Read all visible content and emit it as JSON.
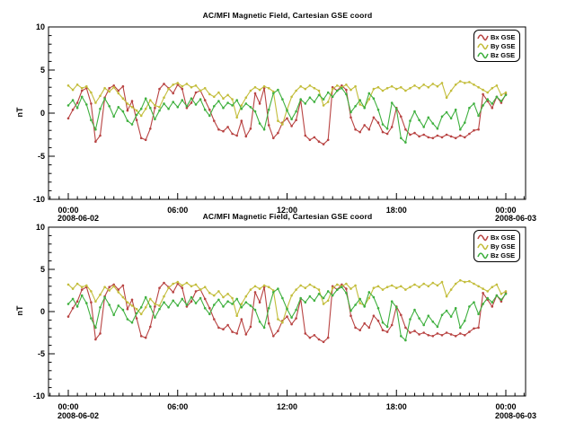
{
  "chart_data": {
    "type": "line",
    "title": "AC/MFI  Magnetic Field, Cartesian GSE coord",
    "ylabel": "nT",
    "ylim": [
      -10,
      10
    ],
    "y_ticks": [
      -10,
      -5,
      0,
      5,
      10
    ],
    "y_tick_labels": [
      "-10",
      "-5",
      "0",
      "5",
      "10"
    ],
    "y_minor_step": 1,
    "x_ticks_hours": [
      0,
      6,
      12,
      18,
      24
    ],
    "x_tick_labels": [
      "00:00",
      "06:00",
      "12:00",
      "18:00",
      "00:00"
    ],
    "x_minor_step_hours": 0.5,
    "x_start_date": "2008-06-02",
    "x_end_date": "2008-06-03",
    "x_hours": {
      "start": 0,
      "step": 0.25,
      "count": 97
    },
    "grid": false,
    "legend_position": "top-right-inside",
    "panels": 2,
    "series": [
      {
        "name": "Bx GSE",
        "color": "#b84342",
        "values": [
          -0.6,
          0.4,
          1.2,
          2.6,
          2.9,
          1.1,
          -3.3,
          -2.6,
          1.8,
          2.9,
          3.2,
          2.6,
          3.1,
          0.3,
          1.4,
          -0.8,
          -2.9,
          -3.1,
          -1.8,
          0.6,
          2.8,
          3.4,
          2.9,
          2.3,
          3.3,
          2.8,
          0.6,
          1.2,
          2.4,
          2.6,
          1.5,
          0.4,
          -0.9,
          -1.9,
          -2.1,
          -1.6,
          -2.4,
          -2.6,
          -0.9,
          -2.7,
          -1.8,
          2.3,
          1.1,
          2.9,
          -1.4,
          -2.9,
          -2.3,
          -1.1,
          -0.6,
          -1.5,
          -0.8,
          1.5,
          -2.6,
          -3.1,
          -2.8,
          -3.3,
          -3.6,
          -3.1,
          3.0,
          2.6,
          3.2,
          2.7,
          -0.5,
          -1.9,
          -2.2,
          -1.4,
          -1.9,
          -0.5,
          -1.1,
          -2.2,
          -2.4,
          -1.6,
          0.6,
          -0.4,
          -1.9,
          -2.5,
          -2.3,
          -2.7,
          -2.5,
          -2.8,
          -2.9,
          -2.6,
          -2.8,
          -2.5,
          -2.7,
          -2.9,
          -2.6,
          -2.8,
          -2.4,
          -2.0,
          -1.9,
          2.2,
          1.4,
          0.6,
          1.9,
          1.2,
          2.2
        ]
      },
      {
        "name": "By GSE",
        "color": "#c3bd3b",
        "values": [
          3.2,
          2.7,
          3.3,
          2.9,
          3.1,
          2.4,
          1.2,
          2.0,
          2.9,
          2.5,
          3.0,
          2.3,
          1.7,
          1.1,
          0.7,
          0.3,
          -0.3,
          0.5,
          1.5,
          0.9,
          0.7,
          1.8,
          2.8,
          3.3,
          3.5,
          3.1,
          3.4,
          3.0,
          3.2,
          2.6,
          2.9,
          2.2,
          1.9,
          2.4,
          1.7,
          2.1,
          1.6,
          -0.5,
          0.9,
          1.8,
          2.6,
          3.0,
          2.7,
          3.1,
          2.9,
          2.5,
          -0.9,
          -1.3,
          0.4,
          1.9,
          2.6,
          3.1,
          2.8,
          3.2,
          2.9,
          2.6,
          0.9,
          1.3,
          2.8,
          3.2,
          3.0,
          3.3,
          2.7,
          3.1,
          1.0,
          0.7,
          1.6,
          2.8,
          3.0,
          2.6,
          2.9,
          3.1,
          2.8,
          3.0,
          2.6,
          2.9,
          3.2,
          2.9,
          3.3,
          3.0,
          3.4,
          3.1,
          3.5,
          1.8,
          2.6,
          3.3,
          3.7,
          3.5,
          3.6,
          3.3,
          3.0,
          2.7,
          2.4,
          2.9,
          3.2,
          2.1,
          2.4
        ]
      },
      {
        "name": "Bz GSE",
        "color": "#3fb03f",
        "values": [
          0.9,
          1.5,
          0.6,
          1.9,
          1.0,
          -0.8,
          -1.9,
          0.5,
          1.7,
          0.8,
          -0.4,
          0.7,
          0.2,
          -0.9,
          -1.3,
          -0.2,
          0.5,
          1.7,
          0.6,
          -0.7,
          0.3,
          1.1,
          0.5,
          1.3,
          0.7,
          1.5,
          0.8,
          1.7,
          1.0,
          1.6,
          0.4,
          -0.3,
          0.8,
          1.4,
          0.6,
          1.2,
          0.9,
          1.5,
          0.5,
          1.1,
          0.7,
          0.2,
          -1.2,
          -1.9,
          0.4,
          2.3,
          2.7,
          1.6,
          0.3,
          -0.7,
          0.2,
          1.6,
          1.1,
          1.8,
          1.3,
          2.1,
          1.6,
          2.4,
          1.9,
          2.6,
          2.9,
          2.2,
          0.1,
          0.8,
          1.5,
          0.6,
          2.3,
          1.7,
          0.4,
          -1.3,
          -1.8,
          1.2,
          0.5,
          -2.9,
          -3.4,
          -0.9,
          0.2,
          -0.8,
          -1.6,
          -0.5,
          -1.2,
          -1.8,
          -0.4,
          0.1,
          -0.6,
          0.4,
          -1.9,
          -1.1,
          0.6,
          1.1,
          -0.3,
          0.9,
          1.6,
          1.1,
          1.9,
          1.4,
          2.1
        ]
      }
    ]
  }
}
